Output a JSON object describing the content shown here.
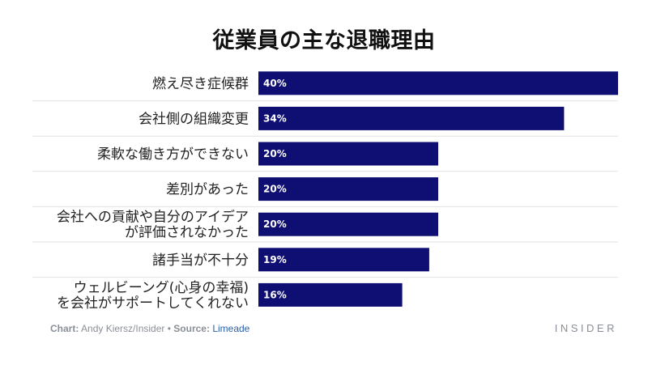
{
  "chart_data": {
    "type": "bar",
    "orientation": "horizontal",
    "title": "従業員の主な退職理由",
    "categories": [
      "燃え尽き症候群",
      "会社側の組織変更",
      "柔軟な働き方ができない",
      "差別があった",
      "会社への貢献や自分のアイデア\nが評価されなかった",
      "諸手当が不十分",
      "ウェルビーング(心身の幸福)\nを会社がサポートしてくれない"
    ],
    "values": [
      40,
      34,
      20,
      20,
      20,
      19,
      16
    ],
    "value_labels": [
      "40%",
      "34%",
      "20%",
      "20%",
      "20%",
      "19%",
      "16%"
    ],
    "xlim": [
      0,
      40
    ],
    "unit": "%",
    "bar_color": "#0f0f73",
    "gridlines": true
  },
  "footer": {
    "chart_label": "Chart:",
    "chart_author": "Andy Kiersz/Insider",
    "separator": "•",
    "source_label": "Source:",
    "source_name": "Limeade"
  },
  "brand": "INSIDER"
}
